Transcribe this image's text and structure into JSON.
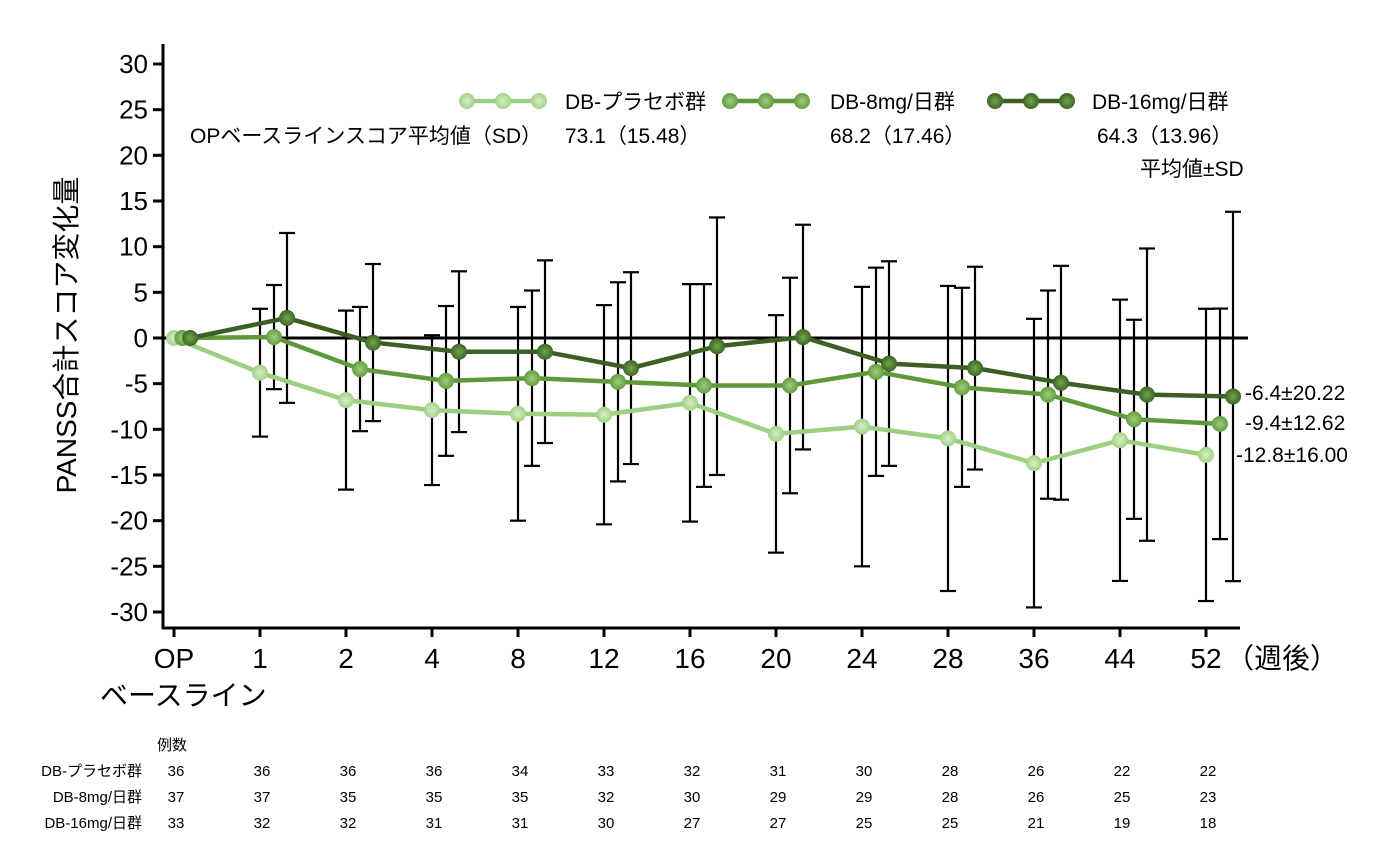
{
  "chart_data": {
    "type": "line",
    "ylabel": "PANSS合計スコア変化量",
    "ylim": [
      -30,
      30
    ],
    "yticks": [
      30,
      25,
      20,
      15,
      10,
      5,
      0,
      -5,
      -10,
      -15,
      -20,
      -25,
      -30
    ],
    "categories": [
      "OP",
      "1",
      "2",
      "4",
      "8",
      "12",
      "16",
      "20",
      "24",
      "28",
      "36",
      "44",
      "52"
    ],
    "op_sublabel": "ベースライン",
    "x_unit": "（週後）",
    "grid": false,
    "legend_placement": "top",
    "series": [
      {
        "name": "DB-プラセボ群",
        "color": "#9ccf7f",
        "baseline": "73.1（15.48）",
        "values": [
          0,
          -3.8,
          -6.8,
          -7.9,
          -8.3,
          -8.4,
          -7.1,
          -10.5,
          -9.7,
          -11.0,
          -13.7,
          -11.2,
          -12.8
        ],
        "sd": [
          null,
          7.0,
          9.8,
          8.2,
          11.7,
          12.0,
          13.0,
          13.0,
          15.3,
          16.7,
          15.8,
          15.4,
          16.0
        ],
        "end_label": "-12.8±16.00",
        "n": [
          "36",
          "36",
          "36",
          "36",
          "34",
          "33",
          "32",
          "31",
          "30",
          "28",
          "26",
          "22",
          "22"
        ]
      },
      {
        "name": "DB-8mg/日群",
        "color": "#5e9a3a",
        "baseline": "68.2（17.46）",
        "values": [
          0,
          0.1,
          -3.4,
          -4.7,
          -4.4,
          -4.8,
          -5.2,
          -5.2,
          -3.7,
          -5.4,
          -6.2,
          -8.9,
          -9.4
        ],
        "sd": [
          null,
          5.7,
          6.8,
          8.2,
          9.6,
          10.9,
          11.1,
          11.8,
          11.4,
          10.9,
          11.4,
          10.9,
          12.62
        ],
        "end_label": "-9.4±12.62",
        "n": [
          "37",
          "37",
          "35",
          "35",
          "35",
          "32",
          "30",
          "29",
          "29",
          "28",
          "26",
          "25",
          "23"
        ]
      },
      {
        "name": "DB-16mg/日群",
        "color": "#3b5f24",
        "baseline": "64.3（13.96）",
        "values": [
          0,
          2.2,
          -0.5,
          -1.5,
          -1.5,
          -3.3,
          -0.9,
          0.1,
          -2.8,
          -3.3,
          -4.9,
          -6.2,
          -6.4
        ],
        "sd": [
          null,
          9.3,
          8.6,
          8.8,
          10.0,
          10.5,
          14.1,
          12.3,
          11.2,
          11.1,
          12.8,
          16.0,
          20.22
        ],
        "end_label": "-6.4±20.22",
        "n": [
          "33",
          "32",
          "32",
          "31",
          "31",
          "30",
          "27",
          "27",
          "25",
          "25",
          "21",
          "19",
          "18"
        ]
      }
    ],
    "baseline_caption": "OPベースラインスコア平均値（SD）",
    "sd_note": "平均値±SD",
    "n_header": "例数"
  }
}
